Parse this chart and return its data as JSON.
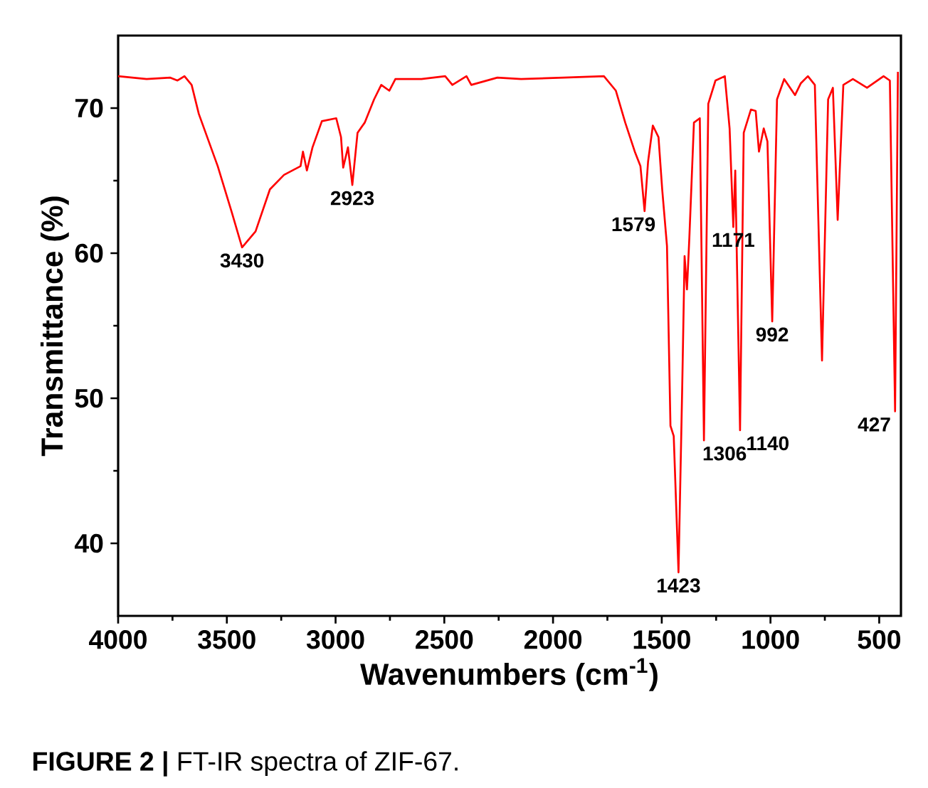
{
  "chart_data": {
    "type": "line",
    "xlabel": "Wavenumbers (cm$^{-1}$)",
    "ylabel": "Transmittance (%)",
    "xlim": [
      4000,
      400
    ],
    "ylim": [
      35,
      75
    ],
    "xticks": [
      4000,
      3500,
      3000,
      2500,
      2000,
      1500,
      1000,
      500
    ],
    "yticks": [
      40,
      50,
      60,
      70
    ],
    "grid": false,
    "marker": "none",
    "line_style": "solid",
    "x": [
      4000,
      3869,
      3760,
      3727,
      3695,
      3662,
      3629,
      3542,
      3477,
      3430,
      3368,
      3302,
      3237,
      3161,
      3150,
      3132,
      3106,
      3063,
      2997,
      2975,
      2965,
      2943,
      2923,
      2899,
      2866,
      2823,
      2790,
      2753,
      2725,
      2605,
      2496,
      2463,
      2398,
      2376,
      2256,
      2147,
      1951,
      1766,
      1711,
      1668,
      1624,
      1598,
      1579,
      1563,
      1541,
      1515,
      1498,
      1476,
      1460,
      1445,
      1423,
      1406,
      1395,
      1384,
      1373,
      1352,
      1325,
      1306,
      1286,
      1253,
      1210,
      1188,
      1171,
      1162,
      1140,
      1123,
      1090,
      1068,
      1053,
      1031,
      1014,
      992,
      970,
      937,
      887,
      861,
      828,
      796,
      763,
      735,
      713,
      691,
      665,
      621,
      556,
      480,
      451,
      427,
      414
    ],
    "series": [
      {
        "color": "#ff0000",
        "values": [
          72.2,
          72.0,
          72.1,
          71.9,
          72.2,
          71.6,
          69.6,
          66.0,
          62.8,
          60.4,
          61.5,
          64.4,
          65.4,
          66.0,
          67.0,
          65.7,
          67.3,
          69.1,
          69.3,
          68.0,
          65.9,
          67.3,
          64.7,
          68.3,
          69.0,
          70.6,
          71.6,
          71.2,
          72.0,
          72.0,
          72.2,
          71.6,
          72.2,
          71.6,
          72.1,
          72.0,
          72.1,
          72.2,
          71.2,
          69.0,
          67.0,
          66.0,
          62.9,
          66.3,
          68.8,
          68.0,
          64.4,
          60.5,
          48.1,
          47.4,
          38.0,
          50.7,
          59.8,
          57.5,
          61.1,
          69.0,
          69.3,
          47.1,
          70.3,
          71.9,
          72.2,
          68.6,
          61.8,
          65.7,
          47.8,
          68.3,
          69.9,
          69.8,
          67.0,
          68.6,
          67.7,
          55.3,
          70.6,
          72.0,
          70.9,
          71.7,
          72.2,
          71.6,
          52.6,
          70.6,
          71.4,
          62.3,
          71.6,
          72.0,
          71.4,
          72.2,
          71.9,
          49.1,
          72.5
        ]
      }
    ],
    "annotations": [
      {
        "text": "3430",
        "x": 3430,
        "y": 60.4
      },
      {
        "text": "2923",
        "x": 2923,
        "y": 64.7
      },
      {
        "text": "1579",
        "x": 1579,
        "y": 62.9
      },
      {
        "text": "1423",
        "x": 1423,
        "y": 38.0
      },
      {
        "text": "1306",
        "x": 1306,
        "y": 47.1
      },
      {
        "text": "1171",
        "x": 1171,
        "y": 61.8
      },
      {
        "text": "1140",
        "x": 1140,
        "y": 47.8
      },
      {
        "text": "992",
        "x": 992,
        "y": 55.3
      },
      {
        "text": "427",
        "x": 427,
        "y": 49.1
      },
      "**FIGURE 2 |** FT-IR spectra of ZIF-67."
    ]
  }
}
